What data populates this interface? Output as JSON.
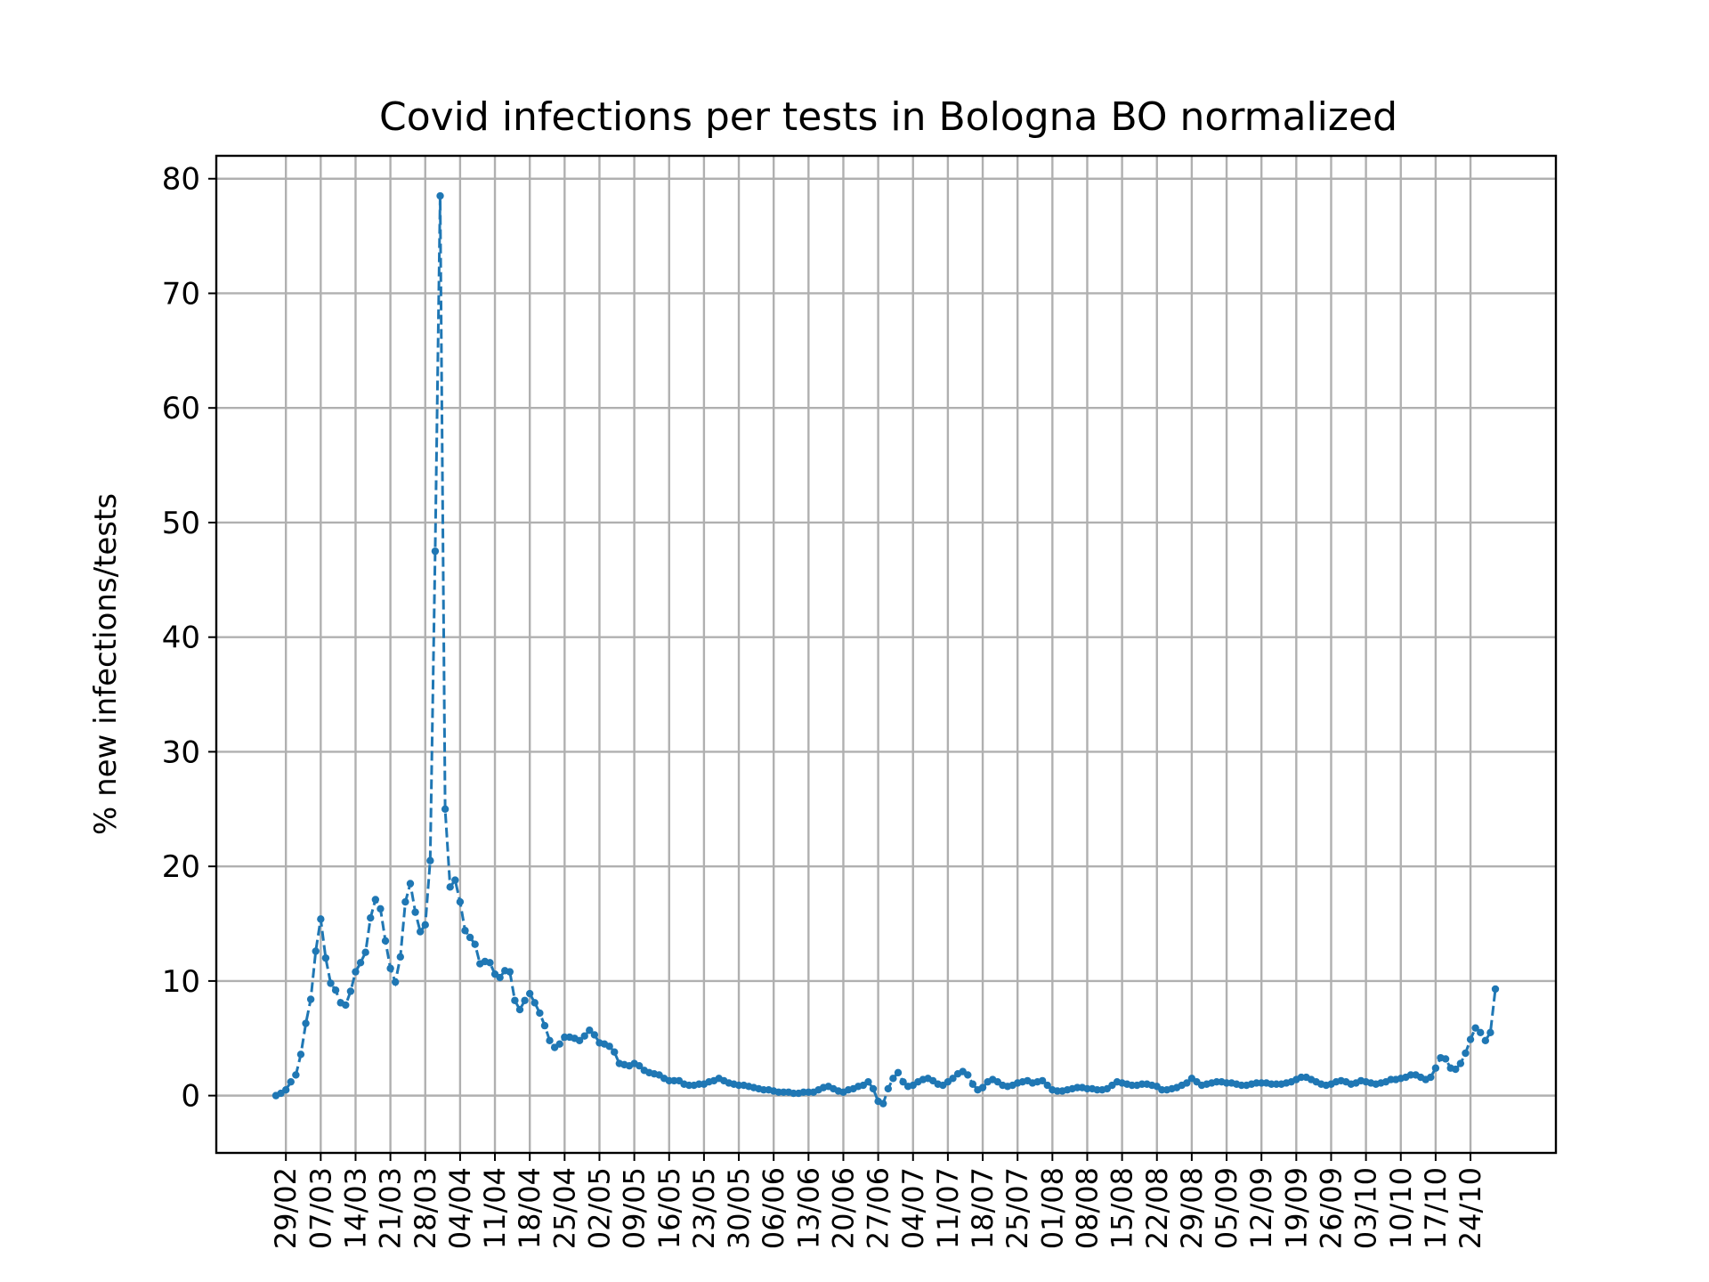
{
  "chart_data": {
    "type": "line",
    "title": "Covid infections per tests in Bologna BO normalized",
    "xlabel": "",
    "ylabel": "% new infections/tests",
    "ylim": [
      -5,
      82
    ],
    "yticks": [
      0,
      10,
      20,
      30,
      40,
      50,
      60,
      70,
      80
    ],
    "grid": true,
    "x_start": "2020-02-27",
    "xtick_labels": [
      "29/02",
      "07/03",
      "14/03",
      "21/03",
      "28/03",
      "04/04",
      "11/04",
      "18/04",
      "25/04",
      "02/05",
      "09/05",
      "16/05",
      "23/05",
      "30/05",
      "06/06",
      "13/06",
      "20/06",
      "27/06",
      "04/07",
      "11/07",
      "18/07",
      "25/07",
      "01/08",
      "08/08",
      "15/08",
      "22/08",
      "29/08",
      "05/09",
      "12/09",
      "19/09",
      "26/09",
      "03/10",
      "10/10",
      "17/10",
      "24/10"
    ],
    "colors": {
      "series": "#1f77b4",
      "grid": "#b0b0b0"
    },
    "series": [
      {
        "values": [
          0,
          0.2,
          0.5,
          1.2,
          1.8,
          3.6,
          6.3,
          8.4,
          12.6,
          15.4,
          12.0,
          9.8,
          9.2,
          8.1,
          7.9,
          9.1,
          10.8,
          11.6,
          12.5,
          15.5,
          17.1,
          16.3,
          13.5,
          11.1,
          9.9,
          12.1,
          16.9,
          18.5,
          16.0,
          14.3,
          14.9,
          20.5,
          47.5,
          78.5,
          25.0,
          18.2,
          18.8,
          16.9,
          14.4,
          13.8,
          13.2,
          11.5,
          11.7,
          11.6,
          10.6,
          10.3,
          10.9,
          10.8,
          8.3,
          7.5,
          8.3,
          8.9,
          8.1,
          7.2,
          6.1,
          4.8,
          4.2,
          4.5,
          5.1,
          5.1,
          5.0,
          4.8,
          5.2,
          5.7,
          5.3,
          4.6,
          4.5,
          4.3,
          3.8,
          2.8,
          2.7,
          2.6,
          2.8,
          2.6,
          2.2,
          2.0,
          1.9,
          1.8,
          1.5,
          1.3,
          1.3,
          1.3,
          1.0,
          0.9,
          0.9,
          1.0,
          1.0,
          1.2,
          1.3,
          1.5,
          1.3,
          1.1,
          1.0,
          0.9,
          0.9,
          0.8,
          0.7,
          0.6,
          0.5,
          0.5,
          0.4,
          0.3,
          0.3,
          0.3,
          0.2,
          0.2,
          0.3,
          0.3,
          0.3,
          0.5,
          0.7,
          0.8,
          0.6,
          0.4,
          0.3,
          0.5,
          0.6,
          0.8,
          0.9,
          1.2,
          0.6,
          -0.5,
          -0.7,
          0.6,
          1.5,
          2.0,
          1.2,
          0.8,
          0.9,
          1.2,
          1.4,
          1.5,
          1.3,
          1.0,
          0.9,
          1.2,
          1.5,
          1.9,
          2.1,
          1.8,
          1.0,
          0.5,
          0.7,
          1.2,
          1.4,
          1.2,
          0.9,
          0.8,
          0.9,
          1.1,
          1.2,
          1.3,
          1.1,
          1.2,
          1.3,
          0.9,
          0.5,
          0.4,
          0.4,
          0.5,
          0.6,
          0.7,
          0.7,
          0.6,
          0.6,
          0.5,
          0.5,
          0.6,
          0.9,
          1.2,
          1.1,
          1.0,
          0.9,
          0.9,
          1.0,
          1.0,
          0.9,
          0.8,
          0.5,
          0.5,
          0.6,
          0.7,
          0.9,
          1.1,
          1.5,
          1.2,
          0.9,
          1.0,
          1.1,
          1.2,
          1.2,
          1.1,
          1.1,
          1.0,
          0.9,
          0.9,
          1.0,
          1.1,
          1.1,
          1.1,
          1.0,
          1.0,
          1.0,
          1.1,
          1.2,
          1.4,
          1.6,
          1.6,
          1.4,
          1.2,
          1.0,
          0.9,
          1.0,
          1.2,
          1.3,
          1.2,
          1.0,
          1.1,
          1.3,
          1.2,
          1.1,
          1.0,
          1.1,
          1.2,
          1.4,
          1.4,
          1.5,
          1.6,
          1.8,
          1.8,
          1.6,
          1.4,
          1.6,
          2.4,
          3.3,
          3.2,
          2.4,
          2.3,
          2.8,
          3.7,
          4.9,
          5.9,
          5.5,
          4.8,
          5.5,
          9.3
        ]
      }
    ]
  }
}
